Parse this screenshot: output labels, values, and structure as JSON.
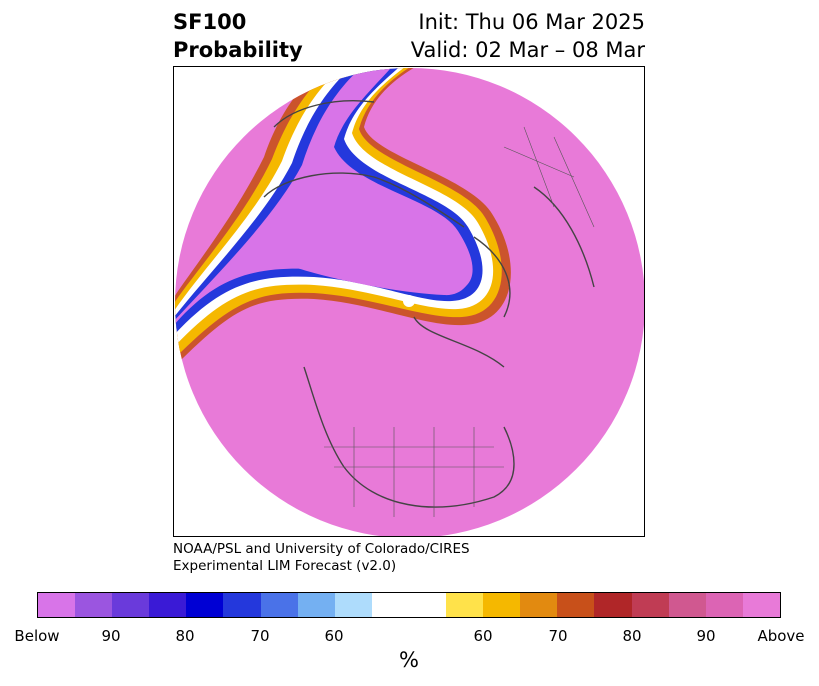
{
  "title": {
    "left_line1": "SF100",
    "left_line2": "Probability",
    "right_line1": "Init: Thu 06 Mar 2025",
    "right_line2": "Valid: 02 Mar – 08 Mar"
  },
  "credit": {
    "line1": "NOAA/PSL and University of Colorado/CIRES",
    "line2": "Experimental LIM Forecast (v2.0)"
  },
  "colorbar": {
    "unit": "%",
    "colors": [
      "#d874e8",
      "#9b55e0",
      "#6a3adb",
      "#3a1ad6",
      "#0000d4",
      "#2438dc",
      "#4a72e8",
      "#74b0f2",
      "#aedcfc",
      "#ffffff",
      "#ffffff",
      "#ffe24a",
      "#f5b800",
      "#e28a10",
      "#c8501a",
      "#b02628",
      "#c03c54",
      "#d05890",
      "#dc64b4",
      "#e87ad8"
    ],
    "ticks": [
      {
        "label": "Below"
      },
      {
        "label": "90"
      },
      {
        "label": "80"
      },
      {
        "label": "70"
      },
      {
        "label": "60"
      },
      {
        "label": "60"
      },
      {
        "label": "70"
      },
      {
        "label": "80"
      },
      {
        "label": "90"
      },
      {
        "label": "Above"
      }
    ]
  },
  "map": {
    "projection": "polar stereographic (north pole)",
    "background_color": "#e87ad8",
    "below_color": "#d874e8"
  }
}
